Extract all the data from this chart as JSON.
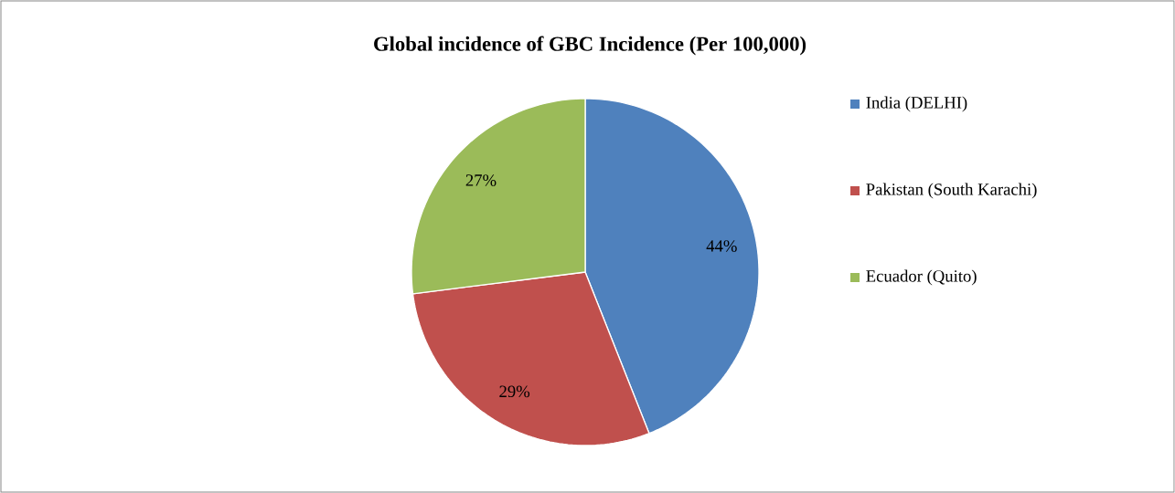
{
  "chart_data": {
    "type": "pie",
    "title": "Global incidence of GBC Incidence (Per 100,000)",
    "categories": [
      "India (DELHI)",
      "Pakistan (South Karachi)",
      "Ecuador (Quito)"
    ],
    "values": [
      44,
      29,
      27
    ],
    "colors": [
      "#4f81bd",
      "#c0504d",
      "#9bbb59"
    ],
    "value_labels": [
      "44%",
      "29%",
      "27%"
    ],
    "legend": "right"
  }
}
